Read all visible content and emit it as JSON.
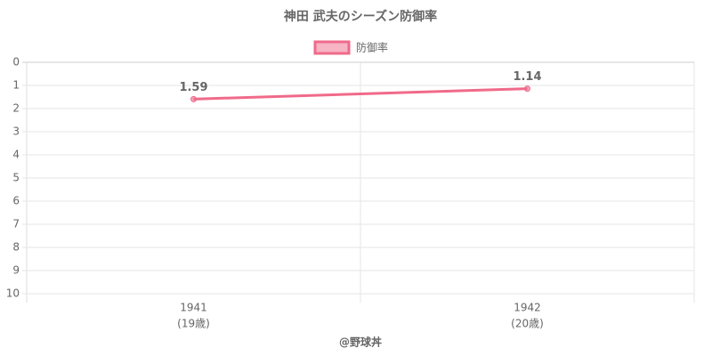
{
  "chart_data": {
    "type": "line",
    "title": "神田 武夫のシーズン防御率",
    "categories": [
      "1941",
      "1942"
    ],
    "category_sublabels": [
      "(19歳)",
      "(20歳)"
    ],
    "series": [
      {
        "name": "防御率",
        "color": "#f06a8a",
        "values": [
          1.59,
          1.14
        ]
      }
    ],
    "ylim": [
      0,
      10
    ],
    "y_reversed": true,
    "yticks": [
      0,
      1,
      2,
      3,
      4,
      5,
      6,
      7,
      8,
      9,
      10
    ],
    "grid": true,
    "legend": "top",
    "footer": "@野球丼"
  }
}
